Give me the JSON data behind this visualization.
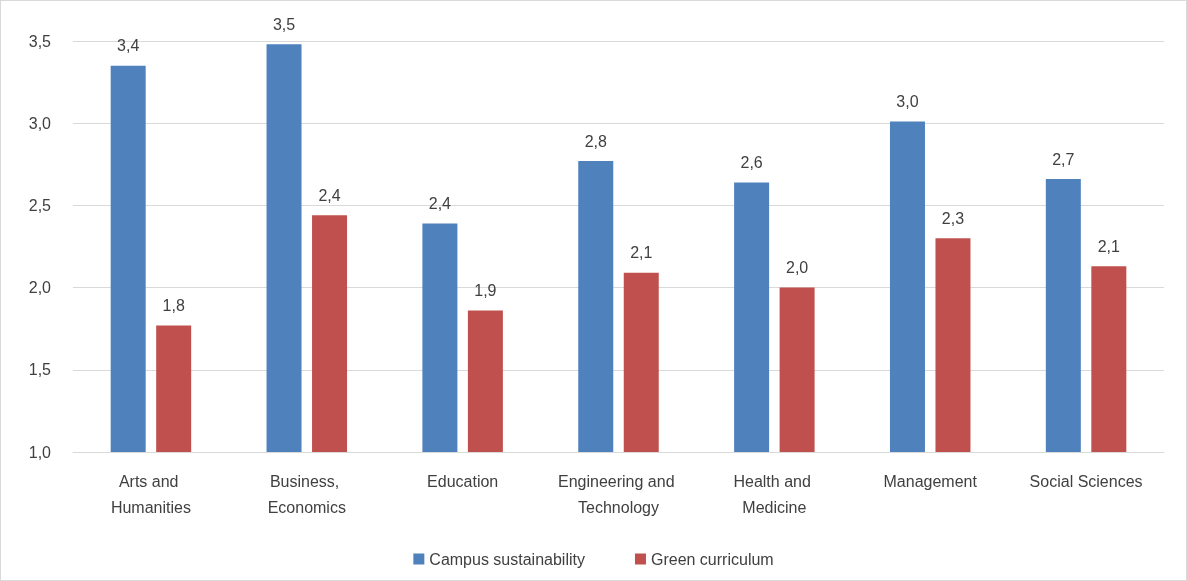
{
  "chart_data": {
    "type": "bar",
    "categories": [
      "Arts and Humanities",
      "Business, Economics",
      "Education",
      "Engineering and Technology",
      "Health and Medicine",
      "Management",
      "Social Sciences"
    ],
    "series": [
      {
        "name": "Campus sustainability",
        "color": "#4f81bd",
        "values": [
          3.35,
          3.48,
          2.39,
          2.77,
          2.64,
          3.01,
          2.66
        ],
        "value_labels": [
          "3,4",
          "3,5",
          "2,4",
          "2,8",
          "2,6",
          "3,0",
          "2,7"
        ]
      },
      {
        "name": "Green curriculum",
        "color": "#c0504d",
        "values": [
          1.77,
          2.44,
          1.86,
          2.09,
          2.0,
          2.3,
          2.13
        ],
        "value_labels": [
          "1,8",
          "2,4",
          "1,9",
          "2,1",
          "2,0",
          "2,3",
          "2,1"
        ]
      }
    ],
    "ylim": [
      1.0,
      3.5
    ],
    "yticks": [
      {
        "value": 1.0,
        "label": "1,0"
      },
      {
        "value": 1.5,
        "label": "1,5"
      },
      {
        "value": 2.0,
        "label": "2,0"
      },
      {
        "value": 2.5,
        "label": "2,5"
      },
      {
        "value": 3.0,
        "label": "3,0"
      },
      {
        "value": 3.5,
        "label": "3,5"
      }
    ],
    "grid": "y",
    "legend": "bottom"
  }
}
